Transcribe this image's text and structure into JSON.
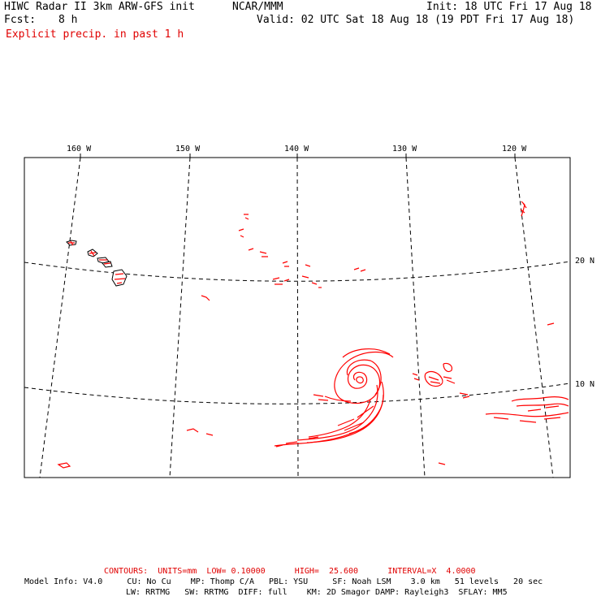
{
  "header": {
    "model_title": "HIWC Radar II 3km ARW-GFS init",
    "org": "NCAR/MMM",
    "init": "Init: 18 UTC Fri 17 Aug 18",
    "fcst_label": "Fcst:",
    "fcst_value": "8 h",
    "valid": "Valid: 02 UTC Sat 18 Aug 18 (19 PDT Fri 17 Aug 18)",
    "field": "Explicit precip. in past 1 h"
  },
  "map": {
    "longitude_labels": [
      "160 W",
      "150 W",
      "140 W",
      "130 W",
      "120 W"
    ],
    "latitude_labels": [
      "20 N",
      "10 N"
    ],
    "contour_color": "#ff0000",
    "land_outline_color": "#000000",
    "gridline_style": "dashed"
  },
  "footer": {
    "contours": "CONTOURS:  UNITS=mm  LOW= 0.10000      HIGH=  25.600      INTERVAL=X  4.0000",
    "model_info_1": "Model Info: V4.0     CU: No Cu    MP: Thomp C/A   PBL: YSU     SF: Noah LSM    3.0 km   51 levels   20 sec",
    "model_info_2": "LW: RRTMG   SW: RRTMG  DIFF: full    KM: 2D Smagor DAMP: Rayleigh3  SFLAY: MM5"
  }
}
